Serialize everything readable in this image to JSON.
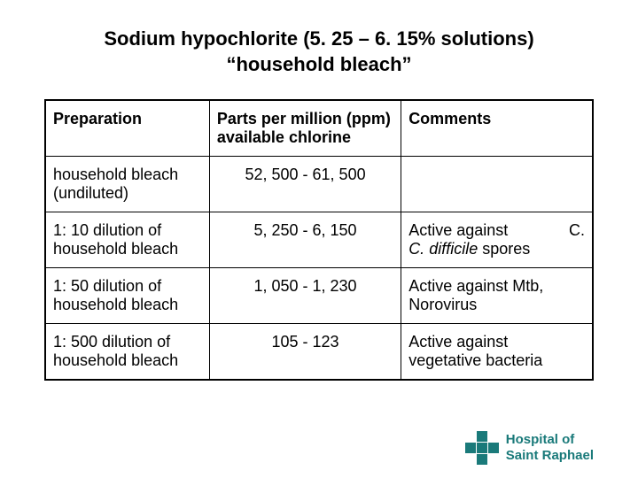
{
  "title_line1": "Sodium hypochlorite (5. 25 – 6. 15% solutions)",
  "title_line2": "“household bleach”",
  "table": {
    "headers": {
      "preparation": "Preparation",
      "ppm": "Parts per million (ppm) available chlorine",
      "comments": "Comments"
    },
    "rows": [
      {
        "prep": "household bleach (undiluted)",
        "ppm": "52, 500 - 61, 500",
        "comment_pre": "",
        "comment_italic": "",
        "comment_post": "",
        "right_text": ""
      },
      {
        "prep": "1: 10 dilution of household bleach",
        "ppm": "5, 250 - 6, 150",
        "comment_pre": "Active against ",
        "comment_italic": "C. difficile",
        "comment_post": " spores",
        "right_text": "C."
      },
      {
        "prep": "1: 50 dilution of household bleach",
        "ppm": "1, 050 - 1, 230",
        "comment_pre": "Active against Mtb, Norovirus",
        "comment_italic": "",
        "comment_post": "",
        "right_text": ""
      },
      {
        "prep": "1: 500 dilution of household bleach",
        "ppm": "105 - 123",
        "comment_pre": "Active against vegetative bacteria",
        "comment_italic": "",
        "comment_post": "",
        "right_text": ""
      }
    ]
  },
  "hospital": {
    "line1": "Hospital of",
    "line2": "Saint Raphael"
  },
  "colors": {
    "text": "#000000",
    "logo": "#1a7a7a",
    "background": "#ffffff",
    "border": "#000000"
  }
}
